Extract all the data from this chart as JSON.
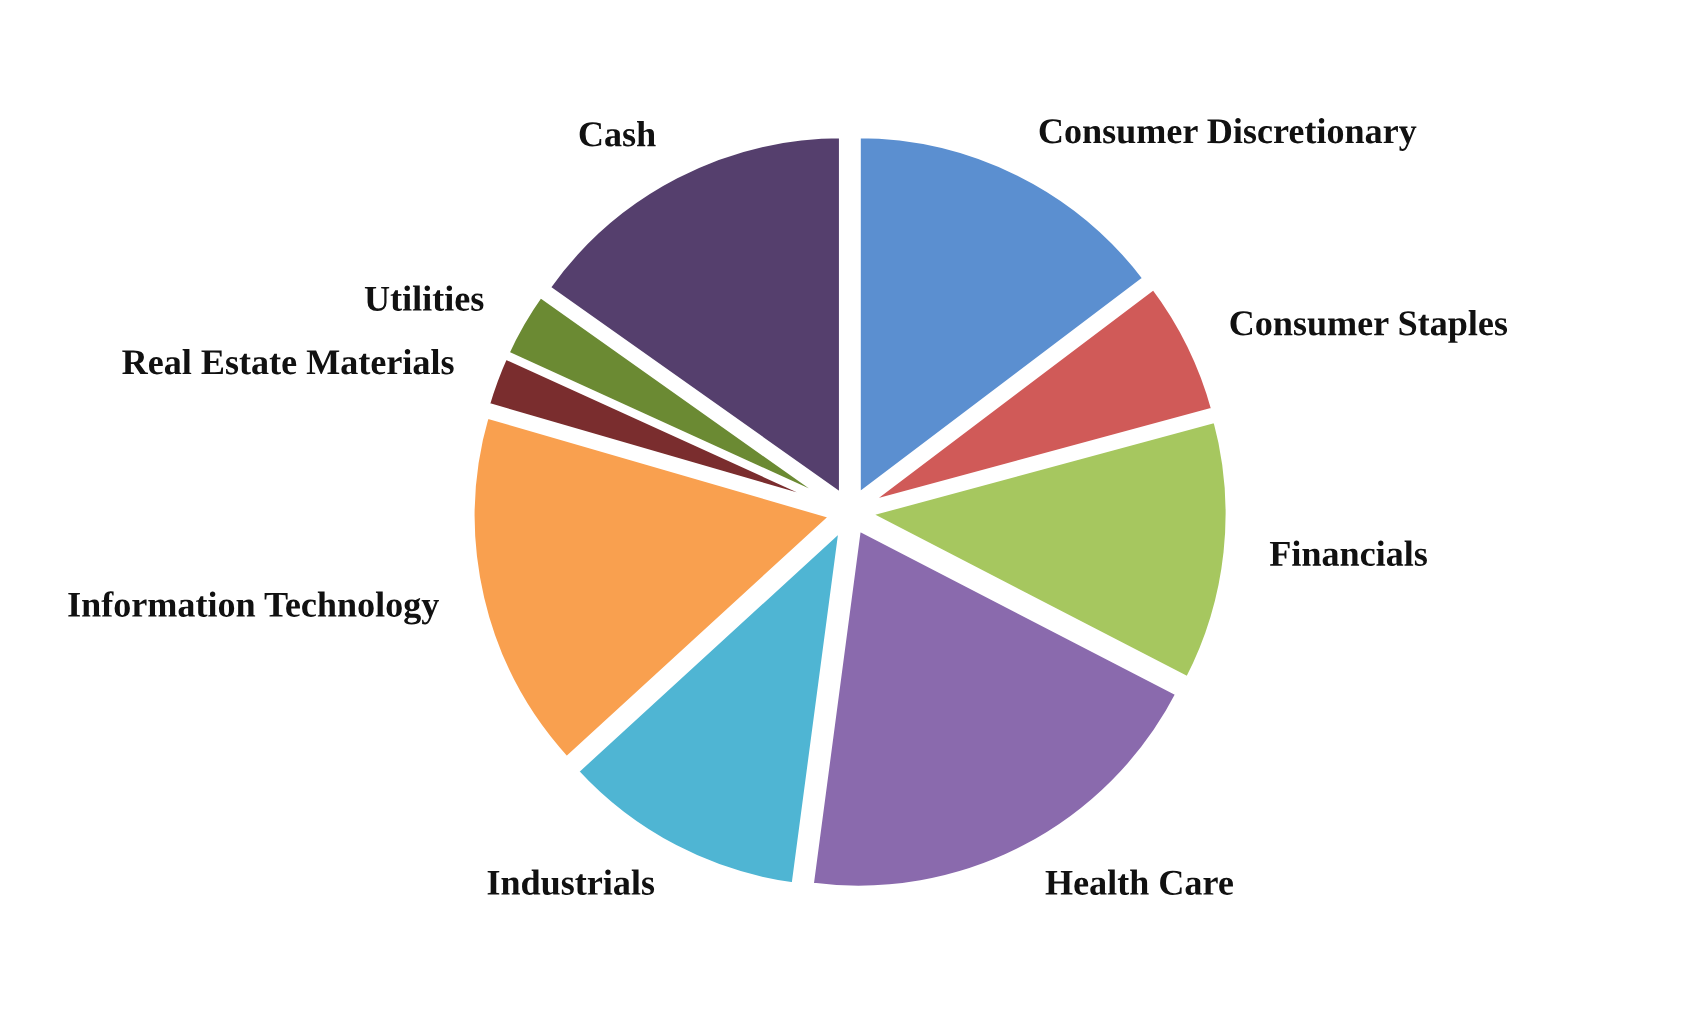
{
  "chart_data": {
    "type": "pie",
    "categories": [
      "Consumer Discretionary",
      "Consumer Staples",
      "Financials",
      "Health Care",
      "Industrials",
      "Information Technology",
      "Real Estate Materials",
      "Utilities",
      "Cash"
    ],
    "values": [
      14.7,
      6.1,
      11.8,
      19.5,
      11.1,
      16.3,
      2.3,
      3.0,
      15.2
    ],
    "colors": [
      "#5b8fd0",
      "#d05a58",
      "#a6c75f",
      "#8a6aad",
      "#4fb5d3",
      "#f9a04f",
      "#7a2d2e",
      "#6b8a33",
      "#553f6d"
    ]
  }
}
